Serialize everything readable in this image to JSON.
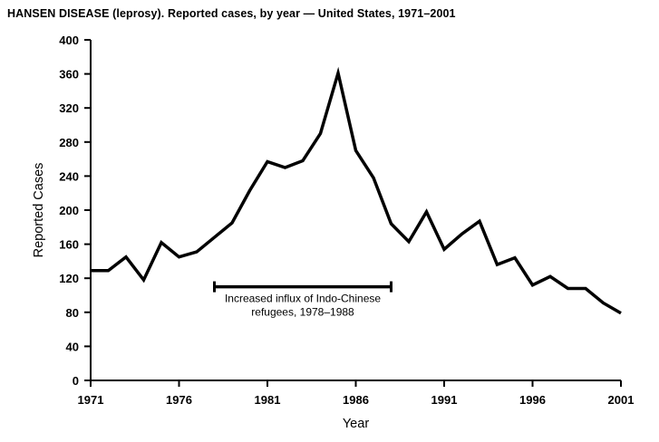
{
  "page": {
    "title": "HANSEN DISEASE (leprosy). Reported cases, by year — United States, 1971–2001"
  },
  "chart_data": {
    "type": "line",
    "title": "HANSEN DISEASE (leprosy). Reported cases, by year — United States, 1971–2001",
    "xlabel": "Year",
    "ylabel": "Reported Cases",
    "x": [
      1971,
      1972,
      1973,
      1974,
      1975,
      1976,
      1977,
      1978,
      1979,
      1980,
      1981,
      1982,
      1983,
      1984,
      1985,
      1986,
      1987,
      1988,
      1989,
      1990,
      1991,
      1992,
      1993,
      1994,
      1995,
      1996,
      1997,
      1998,
      1999,
      2000,
      2001
    ],
    "values": [
      129,
      129,
      145,
      118,
      162,
      145,
      151,
      168,
      185,
      223,
      257,
      250,
      258,
      290,
      361,
      270,
      238,
      184,
      163,
      198,
      154,
      172,
      187,
      136,
      144,
      112,
      122,
      108,
      108,
      91,
      79
    ],
    "xlim": [
      1971,
      2001
    ],
    "ylim": [
      0,
      400
    ],
    "xticks": [
      1971,
      1976,
      1981,
      1986,
      1991,
      1996,
      2001
    ],
    "yticks": [
      0,
      40,
      80,
      120,
      160,
      200,
      240,
      280,
      320,
      360,
      400
    ],
    "grid": false,
    "legend": "none",
    "line_color": "#000000",
    "line_width": 3.5,
    "axis_color": "#000000",
    "annotation": {
      "text_lines": [
        "Increased influx of Indo-Chinese",
        "refugees, 1978–1988"
      ],
      "span_years": [
        1978,
        1988
      ],
      "y_value": 110
    }
  }
}
